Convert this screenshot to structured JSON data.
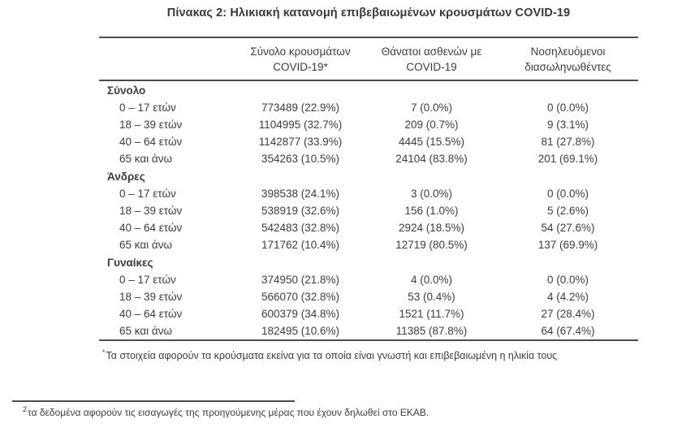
{
  "title": "Πίνακας 2: Ηλικιακή κατανομή επιβεβαιωμένων κρουσμάτων COVID-19",
  "table": {
    "columns": [
      {
        "id": "age-group",
        "line1": "",
        "line2": ""
      },
      {
        "id": "cases",
        "line1": "Σύνολο κρουσμάτων",
        "line2": "COVID-19*"
      },
      {
        "id": "deaths",
        "line1": "Θάνατοι ασθενών με",
        "line2": "COVID-19"
      },
      {
        "id": "intubated",
        "line1": "Νοσηλευόμενοι",
        "line2": "διασωληνωθέντες"
      }
    ],
    "sections": [
      {
        "label": "Σύνολο",
        "rows": [
          {
            "label": "0 – 17 ετών",
            "cases": "773489 (22.9%)",
            "deaths": "7 (0.0%)",
            "intubated": "0 (0.0%)"
          },
          {
            "label": "18 – 39 ετών",
            "cases": "1104995 (32.7%)",
            "deaths": "209 (0.7%)",
            "intubated": "9 (3.1%)"
          },
          {
            "label": "40 – 64 ετών",
            "cases": "1142877 (33.9%)",
            "deaths": "4445 (15.5%)",
            "intubated": "81 (27.8%)"
          },
          {
            "label": "65 και άνω",
            "cases": "354263 (10.5%)",
            "deaths": "24104 (83.8%)",
            "intubated": "201 (69.1%)"
          }
        ]
      },
      {
        "label": "Άνδρες",
        "rows": [
          {
            "label": "0 – 17 ετών",
            "cases": "398538 (24.1%)",
            "deaths": "3 (0.0%)",
            "intubated": "0 (0.0%)"
          },
          {
            "label": "18 – 39 ετών",
            "cases": "538919 (32.6%)",
            "deaths": "156 (1.0%)",
            "intubated": "5 (2.6%)"
          },
          {
            "label": "40 – 64 ετών",
            "cases": "542483 (32.8%)",
            "deaths": "2924 (18.5%)",
            "intubated": "54 (27.6%)"
          },
          {
            "label": "65 και άνω",
            "cases": "171762 (10.4%)",
            "deaths": "12719 (80.5%)",
            "intubated": "137 (69.9%)"
          }
        ]
      },
      {
        "label": "Γυναίκες",
        "rows": [
          {
            "label": "0 – 17 ετών",
            "cases": "374950 (21.8%)",
            "deaths": "4 (0.0%)",
            "intubated": "0 (0.0%)"
          },
          {
            "label": "18 – 39 ετών",
            "cases": "566070 (32.8%)",
            "deaths": "53 (0.4%)",
            "intubated": "4 (4.2%)"
          },
          {
            "label": "40 – 64 ετών",
            "cases": "600379 (34.8%)",
            "deaths": "1521 (11.7%)",
            "intubated": "27 (28.4%)"
          },
          {
            "label": "65 και άνω",
            "cases": "182495 (10.6%)",
            "deaths": "11385 (87.8%)",
            "intubated": "64 (67.4%)"
          }
        ]
      }
    ]
  },
  "footnotes": {
    "asterisk_marker": "*",
    "asterisk_text": "Τα στοιχεία αφορούν τα κρούσματα εκείνα για τα οποία είναι γνωστή και επιβεβαιωμένη η ηλικία τους",
    "ekab_marker": "2",
    "ekab_text": "τα δεδομένα αφορούν τις εισαγωγές της προηγούμενης μέρας που έχουν δηλωθεί στο ΕΚΑΒ."
  },
  "colors": {
    "text": "#3c3c3c",
    "line": "#4d4d4d",
    "background": "#ffffff"
  }
}
